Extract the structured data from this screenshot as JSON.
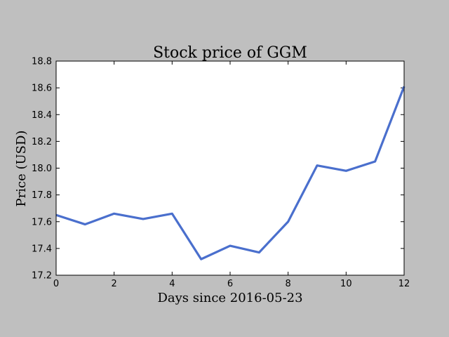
{
  "chart_data": {
    "type": "line",
    "title": "Stock price of GGM",
    "xlabel": "Days since 2016-05-23",
    "ylabel": "Price (USD)",
    "xlim": [
      0,
      12
    ],
    "ylim": [
      17.2,
      18.8
    ],
    "xticks": [
      0,
      2,
      4,
      6,
      8,
      10,
      12
    ],
    "yticks": [
      17.2,
      17.4,
      17.6,
      17.8,
      18.0,
      18.2,
      18.4,
      18.6,
      18.8
    ],
    "ytick_labels": [
      "17.2",
      "17.4",
      "17.6",
      "17.8",
      "18.0",
      "18.2",
      "18.4",
      "18.6",
      "18.8"
    ],
    "grid": false,
    "legend": "none",
    "series": [
      {
        "color": "#4a6fcd",
        "x": [
          0,
          1,
          2,
          3,
          4,
          5,
          6,
          7,
          8,
          9,
          10,
          11,
          12
        ],
        "y": [
          17.65,
          17.58,
          17.66,
          17.62,
          17.66,
          17.32,
          17.42,
          17.37,
          17.6,
          18.02,
          17.98,
          18.05,
          18.61
        ]
      }
    ]
  }
}
